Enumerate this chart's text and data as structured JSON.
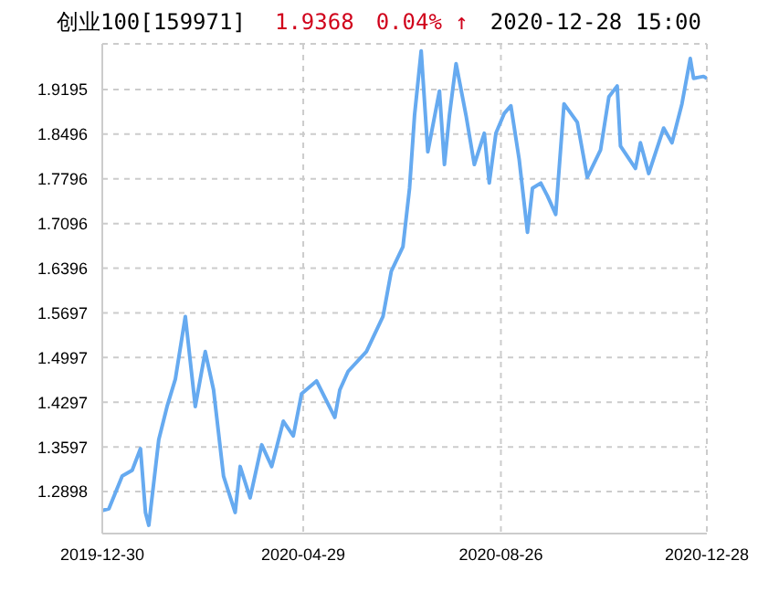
{
  "chart_data": {
    "type": "line",
    "title": "创业100[159971]",
    "annotations": [
      "1.9368",
      "0.04% ↑",
      "2020-12-28 15:00"
    ],
    "x": [
      "2019-12-30",
      "2020-01-03",
      "2020-01-11",
      "2020-01-17",
      "2020-01-22",
      "2020-01-25",
      "2020-01-27",
      "2020-02-02",
      "2020-02-07",
      "2020-02-12",
      "2020-02-18",
      "2020-02-24",
      "2020-03-01",
      "2020-03-06",
      "2020-03-12",
      "2020-03-19",
      "2020-03-22",
      "2020-03-28",
      "2020-04-04",
      "2020-04-10",
      "2020-04-17",
      "2020-04-23",
      "2020-04-28",
      "2020-05-07",
      "2020-05-18",
      "2020-05-21",
      "2020-05-26",
      "2020-06-06",
      "2020-06-16",
      "2020-06-21",
      "2020-06-28",
      "2020-07-02",
      "2020-07-05",
      "2020-07-09",
      "2020-07-13",
      "2020-07-20",
      "2020-07-23",
      "2020-07-26",
      "2020-07-30",
      "2020-08-05",
      "2020-08-10",
      "2020-08-16",
      "2020-08-19",
      "2020-08-23",
      "2020-08-28",
      "2020-09-01",
      "2020-09-06",
      "2020-09-11",
      "2020-09-14",
      "2020-09-19",
      "2020-09-23",
      "2020-09-28",
      "2020-10-03",
      "2020-10-11",
      "2020-10-17",
      "2020-10-25",
      "2020-10-30",
      "2020-11-04",
      "2020-11-06",
      "2020-11-15",
      "2020-11-18",
      "2020-11-23",
      "2020-12-02",
      "2020-12-07",
      "2020-12-13",
      "2020-12-18",
      "2020-12-20",
      "2020-12-26",
      "2020-12-28"
    ],
    "series": [
      {
        "color": "#66aaf0",
        "values": [
          1.26,
          1.263,
          1.314,
          1.323,
          1.357,
          1.257,
          1.237,
          1.371,
          1.423,
          1.466,
          1.564,
          1.423,
          1.509,
          1.449,
          1.314,
          1.257,
          1.329,
          1.28,
          1.363,
          1.329,
          1.4,
          1.377,
          1.443,
          1.463,
          1.406,
          1.449,
          1.478,
          1.509,
          1.564,
          1.635,
          1.673,
          1.765,
          1.879,
          1.98,
          1.822,
          1.917,
          1.802,
          1.879,
          1.96,
          1.879,
          1.802,
          1.851,
          1.773,
          1.851,
          1.882,
          1.894,
          1.81,
          1.696,
          1.765,
          1.773,
          1.753,
          1.724,
          1.897,
          1.868,
          1.782,
          1.825,
          1.908,
          1.925,
          1.831,
          1.796,
          1.836,
          1.788,
          1.859,
          1.836,
          1.897,
          1.968,
          1.937,
          1.94,
          1.9368
        ]
      }
    ],
    "xlim": [
      "2019-12-30",
      "2020-12-28"
    ],
    "xticks": [
      "2019-12-30",
      "2020-04-29",
      "2020-08-26",
      "2020-12-28"
    ],
    "ylim": [
      1.224,
      1.991
    ],
    "yticks": [
      1.2898,
      1.3597,
      1.4297,
      1.4997,
      1.5697,
      1.6396,
      1.7096,
      1.7796,
      1.8496,
      1.9195
    ],
    "grid": true,
    "line_style": "solid",
    "marker": "none"
  }
}
